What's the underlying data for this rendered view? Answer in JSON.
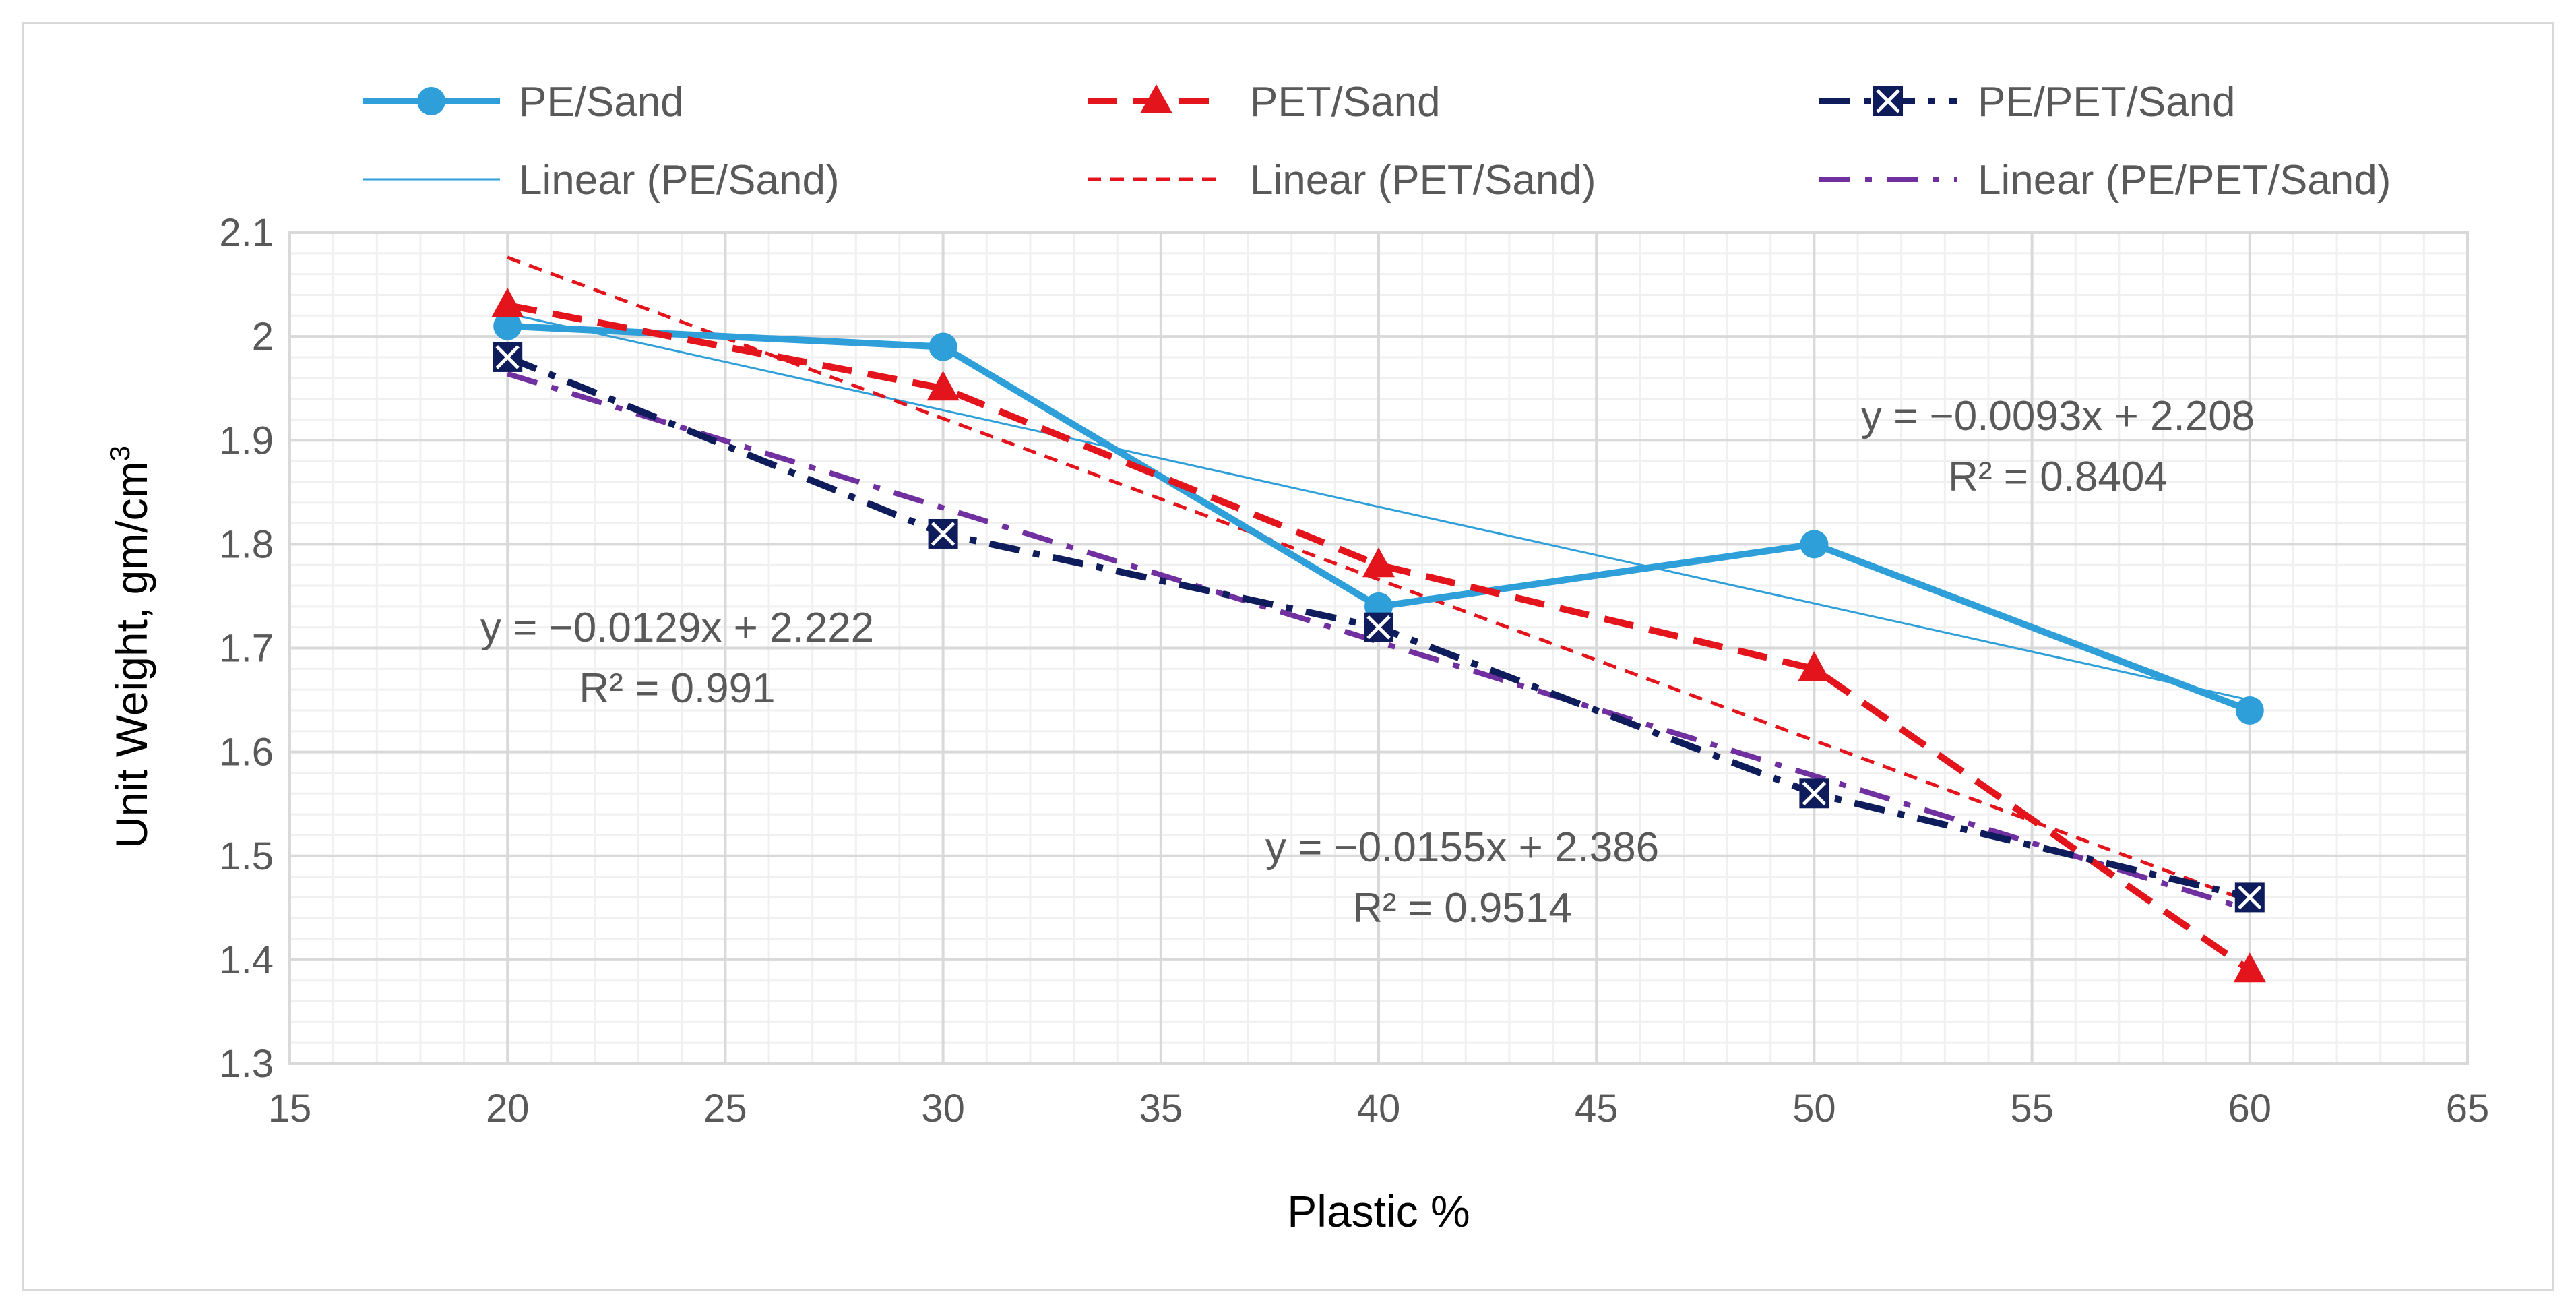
{
  "chart_data": {
    "type": "line",
    "title": "",
    "xlabel": "Plastic %",
    "ylabel": "Unit Weight, gm/cm",
    "ylabel_superscript": "3",
    "xlim": [
      15,
      65
    ],
    "ylim": [
      1.3,
      2.1
    ],
    "x_major_ticks": [
      15,
      20,
      25,
      30,
      35,
      40,
      45,
      50,
      55,
      60,
      65
    ],
    "y_major_ticks": [
      1.3,
      1.4,
      1.5,
      1.6,
      1.7,
      1.8,
      1.9,
      2.0,
      2.1
    ],
    "x_tick_labels": [
      "15",
      "20",
      "25",
      "30",
      "35",
      "40",
      "45",
      "50",
      "55",
      "60",
      "65"
    ],
    "y_tick_labels": [
      "1.3",
      "1.4",
      "1.5",
      "1.6",
      "1.7",
      "1.8",
      "1.9",
      "2",
      "2.1"
    ],
    "grid": true,
    "minor_grid": true,
    "legend_position": "top",
    "series": [
      {
        "name": "PE/Sand",
        "x": [
          20,
          30,
          40,
          50,
          60
        ],
        "values": [
          2.01,
          1.99,
          1.74,
          1.8,
          1.64
        ],
        "color": "#2e9fd9",
        "marker": "circle",
        "line": "solid"
      },
      {
        "name": "PET/Sand",
        "x": [
          20,
          30,
          40,
          50,
          60
        ],
        "values": [
          2.03,
          1.95,
          1.78,
          1.68,
          1.39
        ],
        "color": "#e3141c",
        "marker": "triangle",
        "line": "dashed"
      },
      {
        "name": "PE/PET/Sand",
        "x": [
          20,
          30,
          40,
          50,
          60
        ],
        "values": [
          1.98,
          1.81,
          1.72,
          1.56,
          1.46
        ],
        "color": "#0f1c5c",
        "marker": "boxed-x",
        "line": "dash-dot"
      }
    ],
    "trendlines": [
      {
        "name": "Linear (PE/Sand)",
        "of": "PE/Sand",
        "slope": -0.0093,
        "intercept": 2.208,
        "x_range": [
          20,
          60
        ],
        "color": "#2e9fd9",
        "line": "thin-solid",
        "equation": "y = −0.0093x + 2.208",
        "r2": "R² = 0.8404"
      },
      {
        "name": "Linear (PET/Sand)",
        "of": "PET/Sand",
        "slope": -0.0155,
        "intercept": 2.386,
        "x_range": [
          20,
          60
        ],
        "color": "#e3141c",
        "line": "thin-dashed",
        "equation": "y = −0.0155x + 2.386",
        "r2": "R² = 0.9514"
      },
      {
        "name": "Linear (PE/PET/Sand)",
        "of": "PE/PET/Sand",
        "slope": -0.0129,
        "intercept": 2.222,
        "x_range": [
          20,
          60
        ],
        "color": "#7030a0",
        "line": "dash-dot",
        "equation": "y = −0.0129x + 2.222",
        "r2": "R² = 0.991"
      }
    ]
  }
}
